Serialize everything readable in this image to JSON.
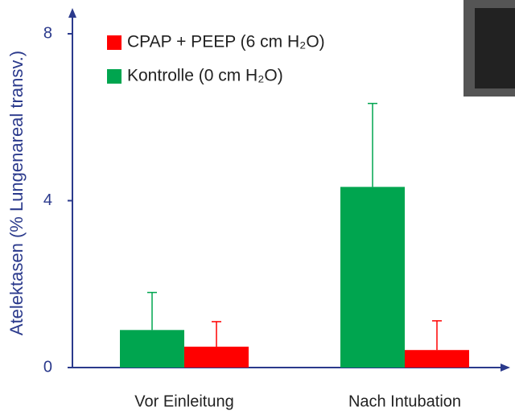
{
  "chart_data": {
    "type": "bar",
    "y_label": "Atelektasen (% Lungenareal transv.)",
    "categories": [
      "Vor Einleitung",
      "Nach Intubation"
    ],
    "series": [
      {
        "name": "CPAP + PEEP (6 cm H₂O)",
        "color": "#ff0000",
        "values": [
          0.5,
          0.42
        ],
        "errors": [
          0.6,
          0.7
        ]
      },
      {
        "name": "Kontrolle (0 cm H₂O)",
        "color": "#00a54f",
        "values": [
          0.9,
          4.33
        ],
        "errors": [
          0.9,
          2.0
        ]
      }
    ],
    "ylim": [
      0,
      8
    ],
    "yticks": [
      0,
      4,
      8
    ]
  }
}
